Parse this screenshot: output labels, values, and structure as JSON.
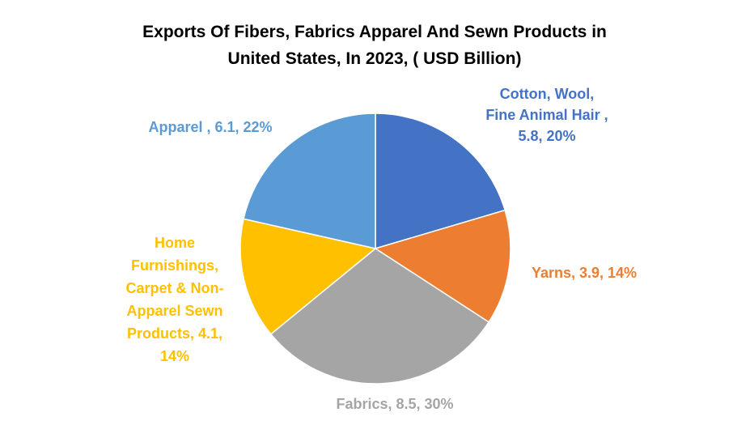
{
  "chart_data": {
    "type": "pie",
    "title": [
      "Exports Of Fibers, Fabrics Apparel And Sewn Products in",
      "United States, In 2023, ( USD Billion)"
    ],
    "slices": [
      {
        "name": "Cotton, Wool, Fine Animal Hair",
        "value": 5.8,
        "percent": 20,
        "color": "#4472C4",
        "label_lines": [
          "Cotton, Wool,",
          "Fine Animal Hair ,",
          "5.8, 20%"
        ]
      },
      {
        "name": "Yarns",
        "value": 3.9,
        "percent": 14,
        "color": "#ED7D31",
        "label_lines": [
          "Yarns, 3.9, 14%"
        ]
      },
      {
        "name": "Fabrics",
        "value": 8.5,
        "percent": 30,
        "color": "#A5A5A5",
        "label_lines": [
          "Fabrics, 8.5, 30%"
        ]
      },
      {
        "name": "Home Furnishings, Carpet & Non-Apparel Sewn Products",
        "value": 4.1,
        "percent": 14,
        "color": "#FFC000",
        "label_lines": [
          "Home",
          "Furnishings,",
          "Carpet & Non-",
          "Apparel Sewn",
          "Products, 4.1,",
          "14%"
        ]
      },
      {
        "name": "Apparel",
        "value": 6.1,
        "percent": 22,
        "color": "#5B9BD5",
        "label_lines": [
          "Apparel , 6.1, 22%"
        ]
      }
    ]
  }
}
